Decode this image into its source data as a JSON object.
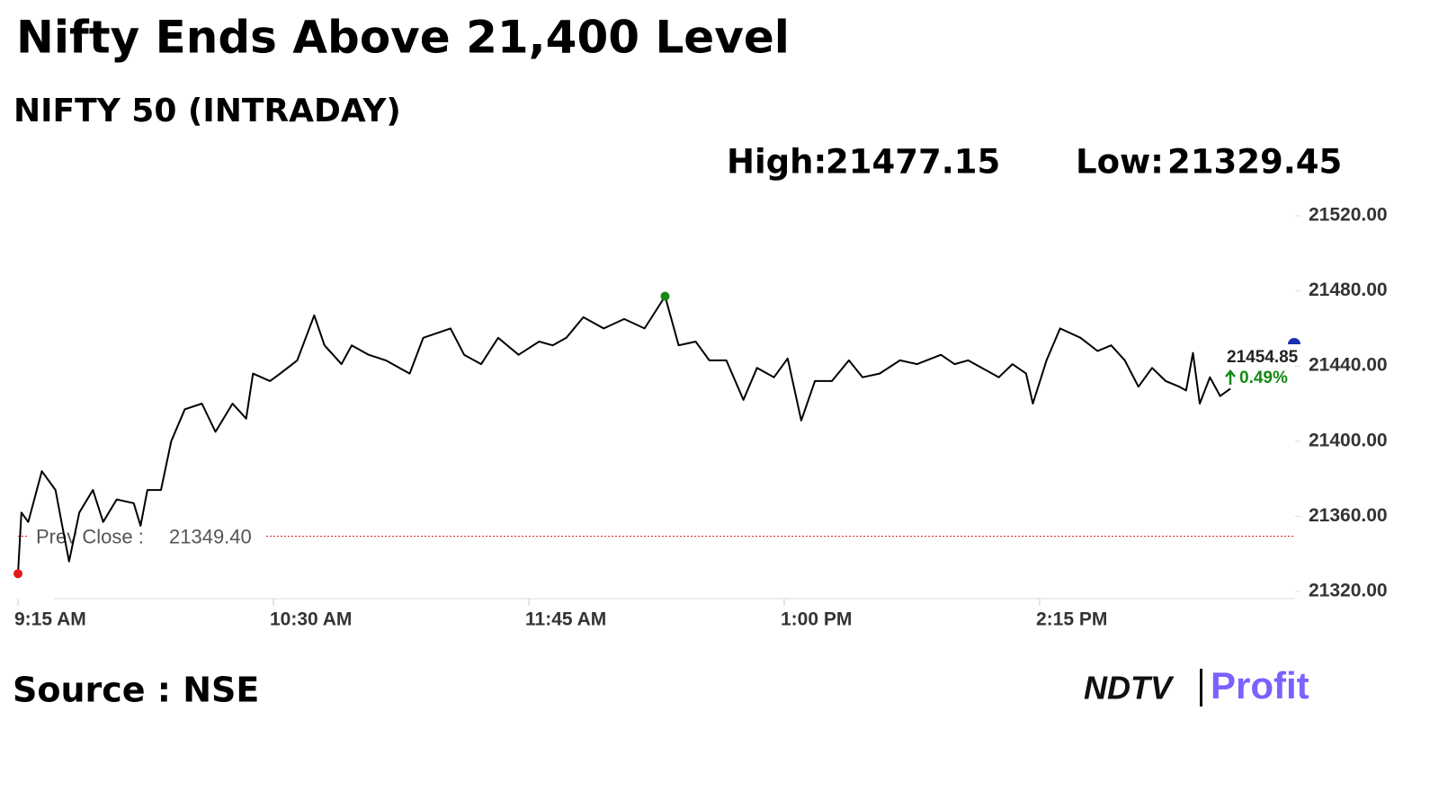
{
  "chart_data": {
    "type": "line",
    "title": "Nifty Ends Above 21,400 Level",
    "subtitle": "NIFTY 50 (INTRADAY)",
    "high": {
      "label": "High:",
      "value": 21477.15
    },
    "low": {
      "label": "Low:",
      "value": 21329.45
    },
    "prev_close": {
      "label": "Prev Close :",
      "value": {
        "value": 21349.4,
        "label": "21349.40"
      }
    },
    "last": {
      "value": 21454.85,
      "change": {
        "value": 0.49,
        "label": "0.49%"
      }
    },
    "color": "#000000",
    "x": [
      0,
      1,
      3,
      7,
      11,
      13,
      15,
      18,
      22,
      25,
      29,
      34,
      36,
      38,
      42,
      45,
      49,
      54,
      58,
      63,
      67,
      69,
      74,
      77,
      82,
      87,
      90,
      95,
      98,
      103,
      108,
      115,
      119,
      127,
      131,
      136,
      141,
      147,
      153,
      157,
      161,
      166,
      172,
      178,
      184,
      190,
      194,
      199,
      203,
      208,
      213,
      217,
      222,
      226,
      230,
      234,
      239,
      244,
      248,
      253,
      259,
      264,
      271,
      275,
      279,
      283,
      288,
      292,
      296,
      298,
      302,
      306,
      312,
      317,
      321,
      325,
      329,
      333,
      337,
      341,
      343,
      345,
      347,
      350,
      353,
      356
    ],
    "values": [
      21329.45,
      21362,
      21357,
      21384,
      21374,
      21355,
      21336,
      21362,
      21374,
      21357,
      21369,
      21367,
      21355,
      21374,
      21374,
      21400,
      21417,
      21420,
      21405,
      21420,
      21412,
      21436,
      21432,
      21436,
      21443,
      21467,
      21451,
      21441,
      21451,
      21446,
      21443,
      21436,
      21455,
      21460,
      21446,
      21441,
      21455,
      21446,
      21453,
      21451,
      21455,
      21466,
      21460,
      21465,
      21460,
      21477.15,
      21451,
      21453,
      21443,
      21443,
      21422,
      21439,
      21434,
      21444,
      21411,
      21432,
      21432,
      21443,
      21434,
      21436,
      21443,
      21441,
      21446,
      21441,
      21443,
      21439,
      21434,
      21441,
      21436,
      21420,
      21443,
      21460,
      21455,
      21448,
      21451,
      21443,
      21429,
      21439,
      21432,
      21429,
      21427,
      21447,
      21420,
      21434,
      21424,
      21428
    ],
    "xlim": [
      0,
      375
    ],
    "xticks": [
      {
        "value": 0,
        "label": "9:15 AM"
      },
      {
        "value": 75,
        "label": "10:30 AM"
      },
      {
        "value": 150,
        "label": "11:45 AM"
      },
      {
        "value": 225,
        "label": "1:00 PM"
      },
      {
        "value": 300,
        "label": "2:15 PM"
      }
    ],
    "ylim": [
      21320,
      21520
    ],
    "yticks": [
      {
        "value": 21320,
        "label": "21320.00"
      },
      {
        "value": 21360,
        "label": "21360.00"
      },
      {
        "value": 21400,
        "label": "21400.00"
      },
      {
        "value": 21440,
        "label": "21440.00"
      },
      {
        "value": 21480,
        "label": "21480.00"
      },
      {
        "value": 21520,
        "label": "21520.00"
      }
    ]
  },
  "footer": {
    "source": "Source : NSE",
    "logo": [
      "NDTV",
      "Profit"
    ]
  }
}
